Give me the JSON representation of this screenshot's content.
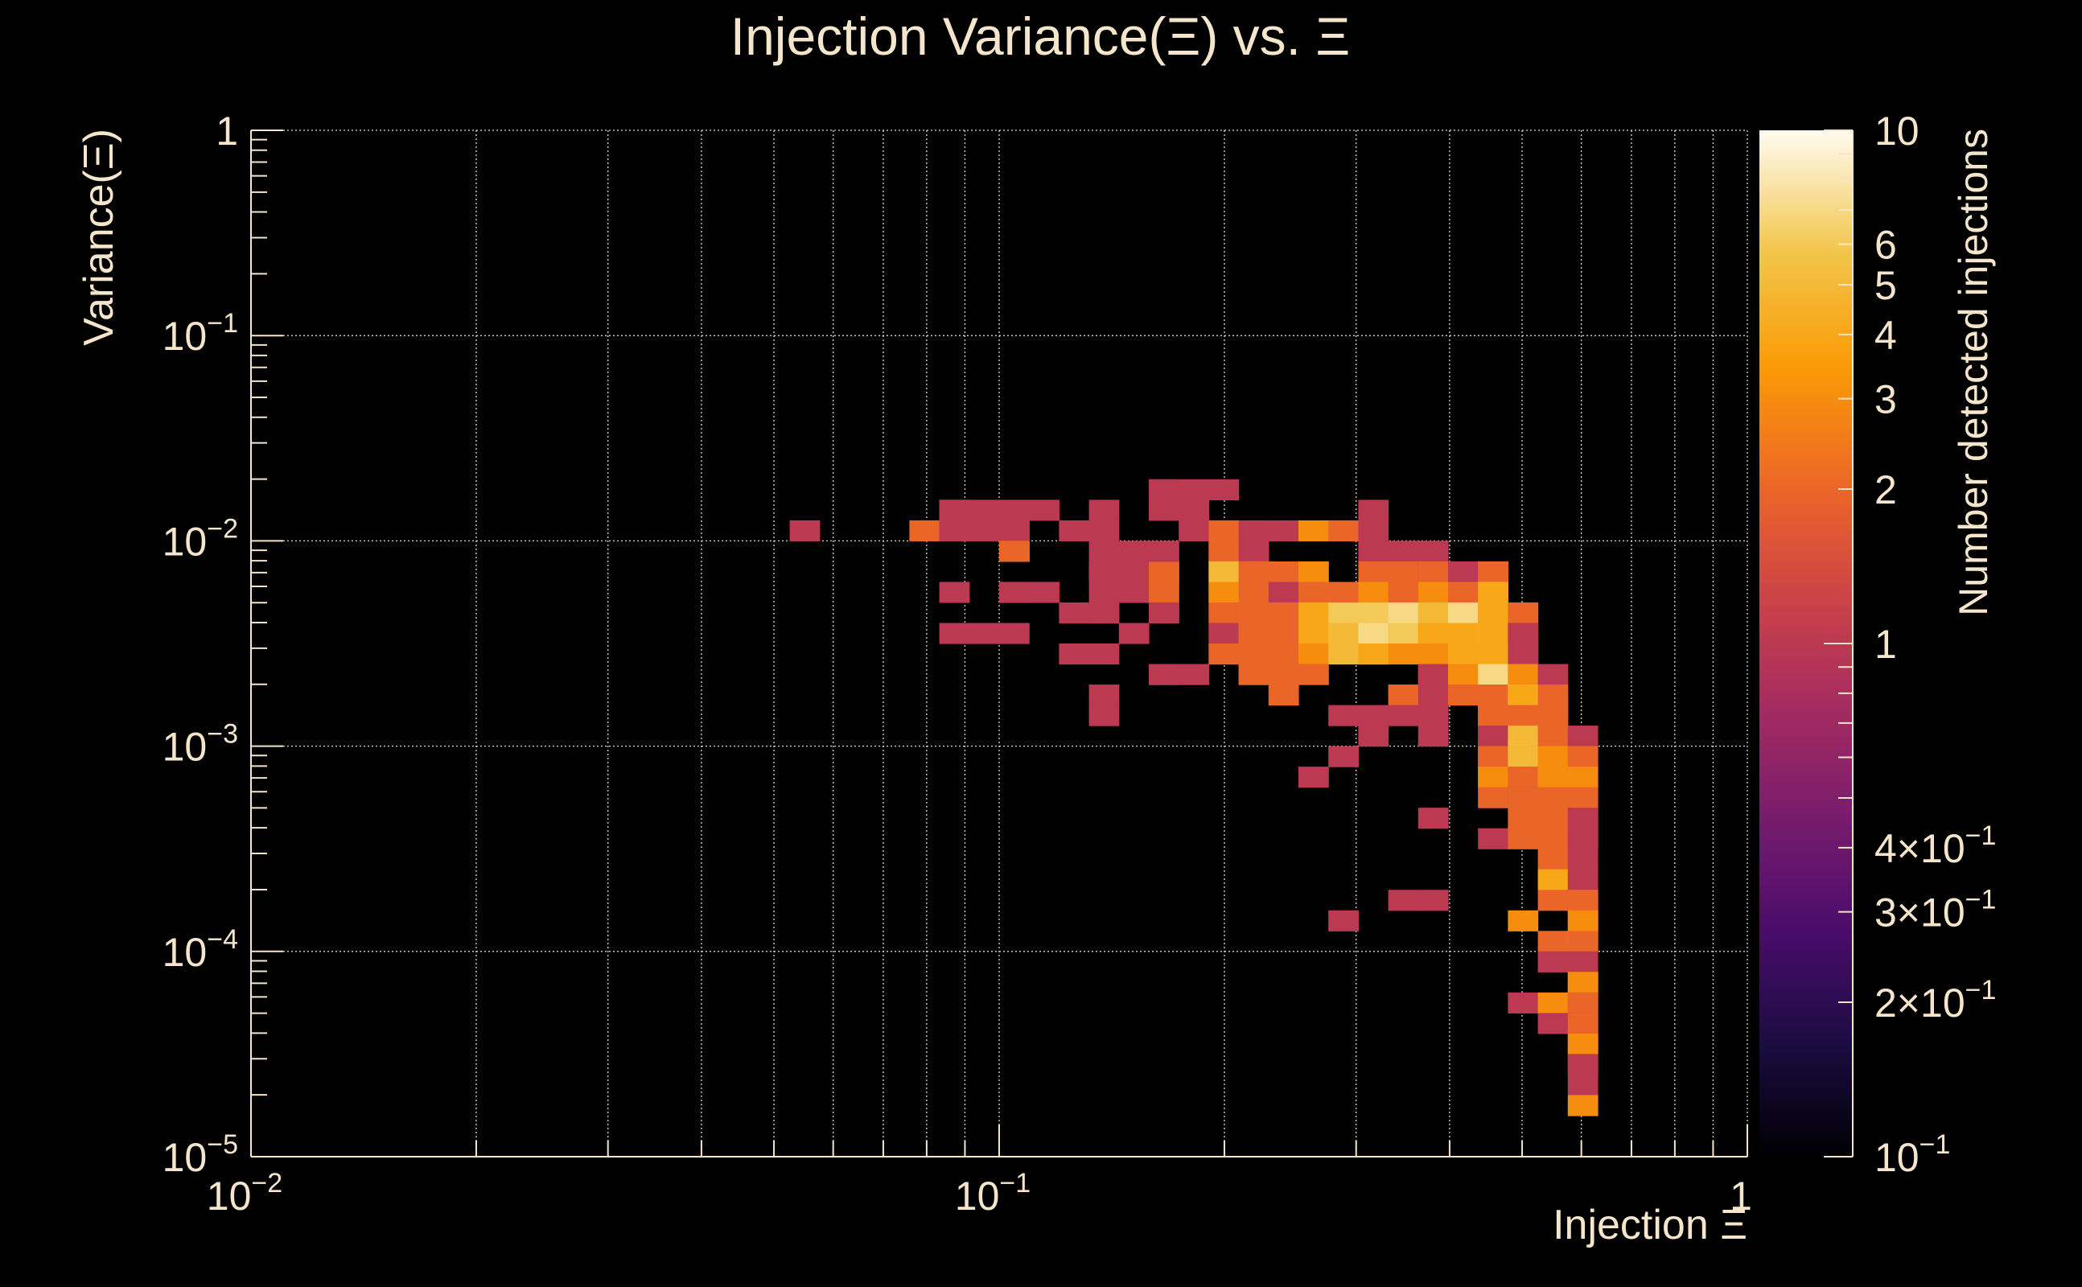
{
  "chart_data": {
    "type": "heatmap",
    "title": "Injection Variance(Ξ) vs. Ξ",
    "xlabel": "Injection Ξ",
    "ylabel": "Variance(Ξ)",
    "colorbar_label": "Number detected injections",
    "x_scale": "log",
    "y_scale": "log",
    "z_scale": "log",
    "xlim": [
      0.01,
      1
    ],
    "ylim": [
      1e-05,
      1
    ],
    "zlim": [
      0.1,
      10
    ],
    "grid": true,
    "x_ticks": [
      {
        "value": 0.01,
        "base": "10",
        "exp": "−2"
      },
      {
        "value": 0.1,
        "base": "10",
        "exp": "−1"
      },
      {
        "value": 1,
        "base": "1",
        "exp": ""
      }
    ],
    "y_ticks": [
      {
        "value": 1,
        "base": "1",
        "exp": ""
      },
      {
        "value": 0.1,
        "base": "10",
        "exp": "−1"
      },
      {
        "value": 0.01,
        "base": "10",
        "exp": "−2"
      },
      {
        "value": 0.001,
        "base": "10",
        "exp": "−3"
      },
      {
        "value": 0.0001,
        "base": "10",
        "exp": "−4"
      },
      {
        "value": 1e-05,
        "base": "10",
        "exp": "−5"
      }
    ],
    "z_ticks": [
      {
        "value": 10,
        "label": "10"
      },
      {
        "value": 6,
        "label": "6"
      },
      {
        "value": 5,
        "label": "5"
      },
      {
        "value": 4,
        "label": "4"
      },
      {
        "value": 3,
        "label": "3"
      },
      {
        "value": 2,
        "label": "2"
      },
      {
        "value": 1,
        "label": "1"
      },
      {
        "value": 0.4,
        "label": "4×10",
        "exp": "−1"
      },
      {
        "value": 0.3,
        "label": "3×10",
        "exp": "−1"
      },
      {
        "value": 0.2,
        "label": "2×10",
        "exp": "−1"
      },
      {
        "value": 0.1,
        "label": "10",
        "exp": "−1"
      }
    ],
    "x_bins": 50,
    "y_bins": 50,
    "cells": [
      [
        0.0565,
        0.01175,
        1
      ],
      [
        0.0838,
        0.0147,
        2
      ],
      [
        0.0889,
        0.0147,
        1
      ],
      [
        0.0943,
        0.0147,
        1
      ],
      [
        0.1,
        0.0147,
        1
      ],
      [
        0.079,
        0.01175,
        2
      ],
      [
        0.0838,
        0.01175,
        1
      ],
      [
        0.0889,
        0.01175,
        1
      ],
      [
        0.0943,
        0.01175,
        1
      ],
      [
        0.1,
        0.01175,
        1
      ],
      [
        0.1061,
        0.01175,
        1
      ],
      [
        0.1,
        0.0094,
        3
      ],
      [
        0.1061,
        0.0094,
        2
      ],
      [
        0.0838,
        0.006,
        1
      ],
      [
        0.1,
        0.006,
        1
      ],
      [
        0.1061,
        0.006,
        1
      ],
      [
        0.1125,
        0.006,
        1
      ],
      [
        0.0889,
        0.0038,
        1
      ],
      [
        0.0943,
        0.0038,
        1
      ],
      [
        0.1,
        0.0038,
        1
      ],
      [
        0.1194,
        0.0147,
        1
      ],
      [
        0.1267,
        0.01175,
        1
      ],
      [
        0.1343,
        0.0147,
        1
      ],
      [
        0.1425,
        0.01175,
        1
      ],
      [
        0.1343,
        0.0075,
        2
      ],
      [
        0.1425,
        0.0075,
        1
      ],
      [
        0.1512,
        0.0075,
        1
      ],
      [
        0.1604,
        0.0075,
        1
      ],
      [
        0.1702,
        0.0075,
        2
      ],
      [
        0.1425,
        0.0094,
        1
      ],
      [
        0.1512,
        0.0094,
        1
      ],
      [
        0.1604,
        0.0094,
        1
      ],
      [
        0.1604,
        0.0185,
        1
      ],
      [
        0.1702,
        0.0185,
        1
      ],
      [
        0.1806,
        0.0185,
        1
      ],
      [
        0.1702,
        0.0147,
        1
      ],
      [
        0.1806,
        0.0147,
        1
      ],
      [
        0.1806,
        0.01175,
        1
      ],
      [
        0.1916,
        0.01175,
        2
      ],
      [
        0.1267,
        0.0048,
        1
      ],
      [
        0.1343,
        0.0048,
        1
      ],
      [
        0.1425,
        0.006,
        1
      ],
      [
        0.1512,
        0.006,
        1
      ],
      [
        0.1604,
        0.006,
        2
      ],
      [
        0.1425,
        0.0048,
        1
      ],
      [
        0.1512,
        0.0038,
        1
      ],
      [
        0.1604,
        0.0048,
        1
      ],
      [
        0.1702,
        0.0048,
        1
      ],
      [
        0.1267,
        0.003,
        1
      ],
      [
        0.1425,
        0.003,
        1
      ],
      [
        0.1604,
        0.0024,
        1
      ],
      [
        0.1702,
        0.0024,
        1
      ],
      [
        0.1806,
        0.0024,
        1
      ],
      [
        0.1343,
        0.0019,
        1
      ],
      [
        0.1425,
        0.0015,
        1
      ],
      [
        0.2033,
        0.0185,
        1
      ],
      [
        0.1916,
        0.0094,
        3
      ],
      [
        0.2033,
        0.0094,
        2
      ],
      [
        0.2157,
        0.0094,
        3
      ],
      [
        0.2288,
        0.0094,
        1
      ],
      [
        0.1916,
        0.0075,
        4
      ],
      [
        0.2033,
        0.0075,
        5
      ],
      [
        0.2157,
        0.0075,
        4
      ],
      [
        0.2288,
        0.0075,
        2
      ],
      [
        0.2428,
        0.0075,
        2
      ],
      [
        0.2576,
        0.0075,
        3
      ],
      [
        0.1916,
        0.006,
        5
      ],
      [
        0.2033,
        0.006,
        3
      ],
      [
        0.2157,
        0.006,
        4
      ],
      [
        0.2288,
        0.006,
        2
      ],
      [
        0.2428,
        0.006,
        1
      ],
      [
        0.2576,
        0.006,
        4
      ],
      [
        0.2733,
        0.006,
        2
      ],
      [
        0.29,
        0.006,
        2
      ],
      [
        0.3077,
        0.006,
        2
      ],
      [
        0.1916,
        0.0048,
        1
      ],
      [
        0.2033,
        0.0048,
        2
      ],
      [
        0.2157,
        0.0048,
        3
      ],
      [
        0.2288,
        0.0048,
        2
      ],
      [
        0.2428,
        0.0048,
        2
      ],
      [
        0.2576,
        0.0048,
        3
      ],
      [
        0.2733,
        0.0048,
        4
      ],
      [
        0.29,
        0.0048,
        6
      ],
      [
        0.3077,
        0.0048,
        6
      ],
      [
        0.1916,
        0.0038,
        2
      ],
      [
        0.2033,
        0.0038,
        1
      ],
      [
        0.2157,
        0.0038,
        2
      ],
      [
        0.2288,
        0.0038,
        2
      ],
      [
        0.2428,
        0.0038,
        2
      ],
      [
        0.2576,
        0.0038,
        3
      ],
      [
        0.2733,
        0.0038,
        4
      ],
      [
        0.29,
        0.0038,
        5
      ],
      [
        0.3077,
        0.0038,
        4
      ],
      [
        0.1916,
        0.003,
        1
      ],
      [
        0.2033,
        0.003,
        2
      ],
      [
        0.2157,
        0.003,
        2
      ],
      [
        0.2288,
        0.003,
        2
      ],
      [
        0.2428,
        0.003,
        2
      ],
      [
        0.2576,
        0.003,
        2
      ],
      [
        0.2733,
        0.003,
        3
      ],
      [
        0.29,
        0.003,
        5
      ],
      [
        0.3077,
        0.003,
        4
      ],
      [
        0.2157,
        0.0024,
        1
      ],
      [
        0.2288,
        0.0024,
        2
      ],
      [
        0.2428,
        0.0024,
        2
      ],
      [
        0.2576,
        0.0024,
        2
      ],
      [
        0.2428,
        0.0019,
        2
      ],
      [
        0.2288,
        0.01175,
        1
      ],
      [
        0.2428,
        0.01175,
        1
      ],
      [
        0.2733,
        0.01175,
        3
      ],
      [
        0.29,
        0.01175,
        2
      ],
      [
        0.3264,
        0.01175,
        1
      ],
      [
        0.3264,
        0.0147,
        1
      ],
      [
        0.3264,
        0.0094,
        1
      ],
      [
        0.3463,
        0.0094,
        1
      ],
      [
        0.3674,
        0.0094,
        1
      ],
      [
        0.3264,
        0.0075,
        2
      ],
      [
        0.3463,
        0.0075,
        2
      ],
      [
        0.3674,
        0.0075,
        1
      ],
      [
        0.3898,
        0.0075,
        2
      ],
      [
        0.4135,
        0.0075,
        1
      ],
      [
        0.4387,
        0.0075,
        2
      ],
      [
        0.4654,
        0.0075,
        2
      ],
      [
        0.3264,
        0.006,
        3
      ],
      [
        0.3463,
        0.006,
        2
      ],
      [
        0.3674,
        0.006,
        1
      ],
      [
        0.3898,
        0.006,
        3
      ],
      [
        0.4135,
        0.006,
        2
      ],
      [
        0.4387,
        0.006,
        3
      ],
      [
        0.4654,
        0.006,
        4
      ],
      [
        0.3264,
        0.0048,
        6
      ],
      [
        0.3463,
        0.0048,
        7
      ],
      [
        0.3674,
        0.0048,
        6
      ],
      [
        0.3898,
        0.0048,
        5
      ],
      [
        0.4135,
        0.0048,
        7
      ],
      [
        0.4387,
        0.0048,
        3
      ],
      [
        0.4654,
        0.0048,
        4
      ],
      [
        0.4937,
        0.0048,
        2
      ],
      [
        0.3264,
        0.0038,
        7
      ],
      [
        0.3463,
        0.0038,
        6
      ],
      [
        0.3674,
        0.0038,
        5
      ],
      [
        0.3898,
        0.0038,
        4
      ],
      [
        0.4135,
        0.0038,
        4
      ],
      [
        0.4387,
        0.0038,
        8
      ],
      [
        0.4654,
        0.0038,
        4
      ],
      [
        0.4937,
        0.0038,
        2
      ],
      [
        0.5238,
        0.0038,
        1
      ],
      [
        0.3264,
        0.003,
        4
      ],
      [
        0.3463,
        0.003,
        3
      ],
      [
        0.3674,
        0.003,
        3
      ],
      [
        0.3898,
        0.003,
        3
      ],
      [
        0.4135,
        0.003,
        4
      ],
      [
        0.4387,
        0.003,
        5
      ],
      [
        0.4654,
        0.003,
        4
      ],
      [
        0.4937,
        0.003,
        3
      ],
      [
        0.5238,
        0.003,
        1
      ],
      [
        0.3674,
        0.0024,
        2
      ],
      [
        0.3898,
        0.0024,
        1
      ],
      [
        0.4135,
        0.0024,
        3
      ],
      [
        0.4387,
        0.0024,
        3
      ],
      [
        0.4654,
        0.0024,
        7
      ],
      [
        0.4937,
        0.0024,
        3
      ],
      [
        0.5238,
        0.0024,
        3
      ],
      [
        0.5557,
        0.0024,
        1
      ],
      [
        0.3463,
        0.0019,
        2
      ],
      [
        0.3898,
        0.0019,
        1
      ],
      [
        0.4135,
        0.0019,
        2
      ],
      [
        0.4387,
        0.0019,
        2
      ],
      [
        0.4654,
        0.0019,
        2
      ],
      [
        0.4937,
        0.0019,
        10
      ],
      [
        0.5238,
        0.0019,
        4
      ],
      [
        0.5557,
        0.0019,
        2
      ],
      [
        0.29,
        0.0015,
        1
      ],
      [
        0.3077,
        0.0015,
        1
      ],
      [
        0.3264,
        0.0015,
        1
      ],
      [
        0.3463,
        0.0015,
        1
      ],
      [
        0.3674,
        0.0015,
        1
      ],
      [
        0.4387,
        0.0015,
        2
      ],
      [
        0.4654,
        0.0015,
        2
      ],
      [
        0.4937,
        0.0015,
        2
      ],
      [
        0.5238,
        0.0015,
        2
      ],
      [
        0.5557,
        0.0015,
        2
      ],
      [
        0.3077,
        0.0012,
        1
      ],
      [
        0.3674,
        0.0012,
        1
      ],
      [
        0.4387,
        0.0012,
        1
      ],
      [
        0.4654,
        0.0012,
        1
      ],
      [
        0.4937,
        0.0012,
        2
      ],
      [
        0.5238,
        0.0012,
        5
      ],
      [
        0.5557,
        0.0012,
        2
      ],
      [
        0.5896,
        0.0012,
        1
      ],
      [
        0.29,
        0.00095,
        1
      ],
      [
        0.4387,
        0.00095,
        2
      ],
      [
        0.4654,
        0.00095,
        2
      ],
      [
        0.4937,
        0.00095,
        2
      ],
      [
        0.5238,
        0.00095,
        5
      ],
      [
        0.5557,
        0.00095,
        3
      ],
      [
        0.5896,
        0.00095,
        2
      ],
      [
        0.2733,
        0.00076,
        1
      ],
      [
        0.4387,
        0.00076,
        2
      ],
      [
        0.4654,
        0.00076,
        3
      ],
      [
        0.4937,
        0.00076,
        2
      ],
      [
        0.5238,
        0.00076,
        2
      ],
      [
        0.5557,
        0.00076,
        3
      ],
      [
        0.5896,
        0.00076,
        3
      ],
      [
        0.4654,
        0.0006,
        2
      ],
      [
        0.4937,
        0.0006,
        1
      ],
      [
        0.5238,
        0.0006,
        2
      ],
      [
        0.5557,
        0.0006,
        2
      ],
      [
        0.5896,
        0.0006,
        2
      ],
      [
        0.3674,
        0.00048,
        1
      ],
      [
        0.5238,
        0.00048,
        2
      ],
      [
        0.5557,
        0.00048,
        2
      ],
      [
        0.5896,
        0.00048,
        2
      ],
      [
        0.6255,
        0.00048,
        1
      ],
      [
        0.4654,
        0.00038,
        1
      ],
      [
        0.5238,
        0.00038,
        2
      ],
      [
        0.5557,
        0.00038,
        2
      ],
      [
        0.5896,
        0.00038,
        1
      ],
      [
        0.6255,
        0.00038,
        1
      ],
      [
        0.5557,
        0.0003,
        2
      ],
      [
        0.5896,
        0.0003,
        1
      ],
      [
        0.5557,
        0.00024,
        4
      ],
      [
        0.5896,
        0.00024,
        1
      ],
      [
        0.3463,
        0.00019,
        1
      ],
      [
        0.3898,
        0.00019,
        1
      ],
      [
        0.5557,
        0.00019,
        2
      ],
      [
        0.5896,
        0.00019,
        1
      ],
      [
        0.6255,
        0.00019,
        2
      ],
      [
        0.29,
        0.00015,
        1
      ],
      [
        0.5238,
        0.00015,
        3
      ],
      [
        0.5896,
        0.00015,
        2
      ],
      [
        0.6255,
        0.00015,
        3
      ],
      [
        0.5557,
        0.00012,
        2
      ],
      [
        0.5896,
        0.00012,
        4
      ],
      [
        0.6255,
        0.00012,
        2
      ],
      [
        0.5557,
        9.5e-05,
        1
      ],
      [
        0.5896,
        9.5e-05,
        1
      ],
      [
        0.5896,
        7.6e-05,
        3
      ],
      [
        0.6255,
        7.6e-05,
        3
      ],
      [
        0.5238,
        6e-05,
        1
      ],
      [
        0.5557,
        6e-05,
        3
      ],
      [
        0.5896,
        6e-05,
        2
      ],
      [
        0.6255,
        6e-05,
        2
      ],
      [
        0.5557,
        4.8e-05,
        1
      ],
      [
        0.5896,
        4.8e-05,
        1
      ],
      [
        0.6255,
        4.8e-05,
        2
      ],
      [
        0.5896,
        3.8e-05,
        2
      ],
      [
        0.6255,
        3.8e-05,
        3
      ],
      [
        0.5896,
        3e-05,
        2
      ],
      [
        0.6255,
        3e-05,
        1
      ],
      [
        0.5896,
        2.4e-05,
        1
      ],
      [
        0.6255,
        1.9e-05,
        3
      ]
    ]
  },
  "colors": {
    "background": "#000000",
    "text": "#f5e6cb",
    "axis": "#f5e6cb",
    "grid": "#d8d8d8",
    "palette": [
      "#000004",
      "#1b0c41",
      "#4a0c6b",
      "#781c6d",
      "#a52c60",
      "#cf4446",
      "#ed6925",
      "#fb9b06",
      "#f7d13d",
      "#fcffa4"
    ]
  }
}
